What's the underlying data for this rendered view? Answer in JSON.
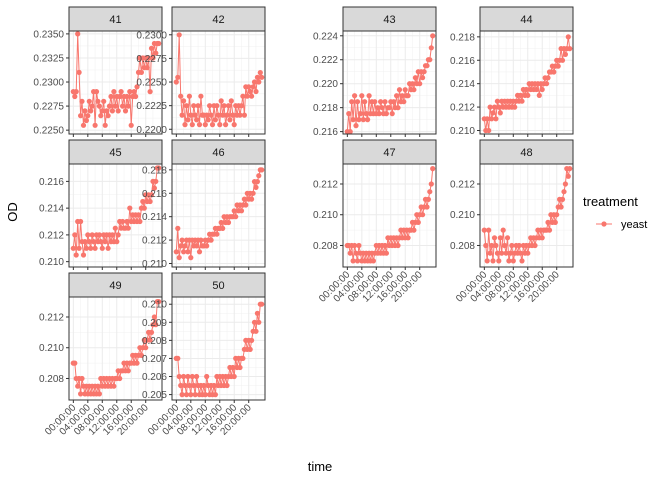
{
  "chart_data": {
    "type": "line",
    "facet_variable": "well",
    "xlabel": "time",
    "ylabel": "OD",
    "x_tick_labels": [
      "00:00:00",
      "04:00:00",
      "08:00:00",
      "12:00:00",
      "16:00:00",
      "20:00:00"
    ],
    "x_tick_hours": [
      0,
      4,
      8,
      12,
      16,
      20
    ],
    "xlim_hours": [
      -1.2,
      24.5
    ],
    "legend": {
      "title": "treatment",
      "entries": [
        "yeast"
      ],
      "position": "right"
    },
    "series_color": "#F8766D",
    "grid": true,
    "panels": [
      {
        "label": "41",
        "ylim": [
          0.2246,
          0.2353
        ],
        "y_ticks": [
          0.225,
          0.2275,
          0.23,
          0.2325,
          0.235
        ],
        "y_tick_labels": [
          "0.2250",
          "0.2275",
          "0.2300",
          "0.2325",
          "0.2350"
        ],
        "values": [
          0.229,
          0.2285,
          0.229,
          0.235,
          0.231,
          0.2265,
          0.228,
          0.2255,
          0.227,
          0.226,
          0.2265,
          0.228,
          0.227,
          0.2275,
          0.229,
          0.2255,
          0.229,
          0.228,
          0.2275,
          0.2265,
          0.227,
          0.228,
          0.2255,
          0.227,
          0.2265,
          0.2275,
          0.2285,
          0.227,
          0.229,
          0.2275,
          0.2285,
          0.227,
          0.2285,
          0.229,
          0.2275,
          0.2285,
          0.227,
          0.2285,
          0.2275,
          0.229,
          0.2255,
          0.2285,
          0.229,
          0.2285,
          0.2295,
          0.231,
          0.2325,
          0.231,
          0.2325,
          0.2315,
          0.2325,
          0.2315,
          0.2325,
          0.229,
          0.2335,
          0.2325,
          0.234,
          0.233,
          0.234,
          0.234
        ]
      },
      {
        "label": "42",
        "ylim": [
          0.2195,
          0.2304
        ],
        "y_ticks": [
          0.22,
          0.2225,
          0.225,
          0.2275,
          0.23
        ],
        "y_tick_labels": [
          "0.2200",
          "0.2225",
          "0.2250",
          "0.2275",
          "0.2300"
        ],
        "values": [
          0.225,
          0.2255,
          0.23,
          0.2235,
          0.2215,
          0.223,
          0.2205,
          0.2225,
          0.221,
          0.2235,
          0.2215,
          0.2205,
          0.2225,
          0.2215,
          0.221,
          0.2225,
          0.2205,
          0.2235,
          0.2215,
          0.2215,
          0.2205,
          0.2215,
          0.221,
          0.2225,
          0.2215,
          0.2205,
          0.2225,
          0.221,
          0.2225,
          0.2215,
          0.2205,
          0.223,
          0.2215,
          0.2225,
          0.2205,
          0.2215,
          0.2225,
          0.221,
          0.223,
          0.2215,
          0.2205,
          0.2225,
          0.2215,
          0.2225,
          0.2215,
          0.2225,
          0.2235,
          0.2215,
          0.2245,
          0.2235,
          0.2245,
          0.224,
          0.2235,
          0.2245,
          0.225,
          0.224,
          0.2255,
          0.225,
          0.226,
          0.2255
        ]
      },
      {
        "label": "43",
        "ylim": [
          0.2158,
          0.2244
        ],
        "y_ticks": [
          0.216,
          0.218,
          0.22,
          0.222,
          0.224
        ],
        "y_tick_labels": [
          "0.216",
          "0.218",
          "0.220",
          "0.222",
          "0.224"
        ],
        "values": [
          0.216,
          0.2175,
          0.216,
          0.2185,
          0.217,
          0.219,
          0.2165,
          0.2185,
          0.217,
          0.2175,
          0.219,
          0.217,
          0.2185,
          0.2175,
          0.217,
          0.219,
          0.2175,
          0.2185,
          0.2175,
          0.2185,
          0.2175,
          0.218,
          0.2175,
          0.2185,
          0.218,
          0.2175,
          0.2185,
          0.2175,
          0.218,
          0.218,
          0.2185,
          0.2175,
          0.2185,
          0.218,
          0.219,
          0.218,
          0.2195,
          0.2185,
          0.219,
          0.2185,
          0.2195,
          0.219,
          0.219,
          0.22,
          0.2195,
          0.22,
          0.2195,
          0.2205,
          0.22,
          0.221,
          0.22,
          0.221,
          0.2205,
          0.221,
          0.2215,
          0.2215,
          0.222,
          0.222,
          0.223,
          0.224
        ]
      },
      {
        "label": "44",
        "ylim": [
          0.2097,
          0.2185
        ],
        "y_ticks": [
          0.21,
          0.212,
          0.214,
          0.216,
          0.218
        ],
        "y_tick_labels": [
          "0.210",
          "0.212",
          "0.214",
          "0.216",
          "0.218"
        ],
        "values": [
          0.211,
          0.21,
          0.211,
          0.21,
          0.212,
          0.211,
          0.2115,
          0.212,
          0.211,
          0.2125,
          0.212,
          0.2115,
          0.2125,
          0.212,
          0.2125,
          0.212,
          0.2125,
          0.212,
          0.2125,
          0.212,
          0.2125,
          0.212,
          0.2125,
          0.213,
          0.2125,
          0.213,
          0.2125,
          0.2135,
          0.213,
          0.2135,
          0.213,
          0.214,
          0.2135,
          0.214,
          0.2135,
          0.214,
          0.2135,
          0.214,
          0.213,
          0.214,
          0.2135,
          0.214,
          0.2145,
          0.214,
          0.2145,
          0.215,
          0.215,
          0.2155,
          0.215,
          0.2155,
          0.216,
          0.2155,
          0.216,
          0.217,
          0.216,
          0.217,
          0.2165,
          0.217,
          0.218,
          0.217
        ]
      },
      {
        "label": "45",
        "ylim": [
          0.2096,
          0.2173
        ],
        "y_ticks": [
          0.21,
          0.212,
          0.214,
          0.216
        ],
        "y_tick_labels": [
          "0.210",
          "0.212",
          "0.214",
          "0.216"
        ],
        "values": [
          0.211,
          0.212,
          0.2105,
          0.213,
          0.211,
          0.213,
          0.2115,
          0.2105,
          0.2115,
          0.211,
          0.212,
          0.2115,
          0.211,
          0.212,
          0.2115,
          0.211,
          0.212,
          0.2115,
          0.212,
          0.2115,
          0.211,
          0.212,
          0.2115,
          0.212,
          0.211,
          0.212,
          0.2115,
          0.212,
          0.2115,
          0.2125,
          0.2115,
          0.212,
          0.213,
          0.2125,
          0.213,
          0.2125,
          0.2125,
          0.213,
          0.2125,
          0.214,
          0.213,
          0.2135,
          0.213,
          0.2135,
          0.213,
          0.2135,
          0.213,
          0.214,
          0.2145,
          0.214,
          0.215,
          0.2145,
          0.215,
          0.2145,
          0.215,
          0.216,
          0.2155,
          0.216,
          0.217,
          0.217
        ]
      },
      {
        "label": "46",
        "ylim": [
          0.2097,
          0.2185
        ],
        "y_ticks": [
          0.21,
          0.212,
          0.214,
          0.216,
          0.218
        ],
        "y_tick_labels": [
          "0.210",
          "0.212",
          "0.214",
          "0.216",
          "0.218"
        ],
        "values": [
          0.211,
          0.213,
          0.2105,
          0.2115,
          0.212,
          0.211,
          0.2115,
          0.212,
          0.211,
          0.212,
          0.2105,
          0.212,
          0.2115,
          0.212,
          0.2115,
          0.212,
          0.211,
          0.212,
          0.2115,
          0.2115,
          0.212,
          0.2115,
          0.212,
          0.2125,
          0.212,
          0.2125,
          0.2125,
          0.213,
          0.2125,
          0.213,
          0.213,
          0.2135,
          0.213,
          0.214,
          0.2135,
          0.214,
          0.2135,
          0.214,
          0.214,
          0.214,
          0.2145,
          0.214,
          0.215,
          0.2145,
          0.215,
          0.2145,
          0.215,
          0.2155,
          0.215,
          0.216,
          0.2155,
          0.216,
          0.2155,
          0.216,
          0.217,
          0.2165,
          0.217,
          0.2175,
          0.218,
          0.218
        ]
      },
      {
        "label": "47",
        "ylim": [
          0.2066,
          0.2133
        ],
        "y_ticks": [
          0.208,
          0.21,
          0.212
        ],
        "y_tick_labels": [
          "0.208",
          "0.210",
          "0.212"
        ],
        "values": [
          0.208,
          0.208,
          0.2075,
          0.208,
          0.207,
          0.208,
          0.2075,
          0.207,
          0.208,
          0.2075,
          0.207,
          0.2075,
          0.207,
          0.2075,
          0.207,
          0.2075,
          0.207,
          0.2075,
          0.207,
          0.2075,
          0.208,
          0.2075,
          0.208,
          0.2075,
          0.208,
          0.2075,
          0.208,
          0.2075,
          0.2085,
          0.208,
          0.2085,
          0.208,
          0.2085,
          0.208,
          0.2085,
          0.208,
          0.2085,
          0.209,
          0.2085,
          0.209,
          0.2085,
          0.209,
          0.2085,
          0.209,
          0.209,
          0.2095,
          0.209,
          0.2095,
          0.21,
          0.2095,
          0.21,
          0.2105,
          0.21,
          0.2105,
          0.211,
          0.2105,
          0.211,
          0.2115,
          0.212,
          0.213
        ]
      },
      {
        "label": "48",
        "ylim": [
          0.2066,
          0.2133
        ],
        "y_ticks": [
          0.208,
          0.21,
          0.212
        ],
        "y_tick_labels": [
          "0.208",
          "0.210",
          "0.212"
        ],
        "values": [
          0.209,
          0.208,
          0.207,
          0.209,
          0.2075,
          0.208,
          0.207,
          0.2085,
          0.208,
          0.2075,
          0.207,
          0.2085,
          0.2075,
          0.209,
          0.208,
          0.2075,
          0.2085,
          0.207,
          0.2075,
          0.208,
          0.207,
          0.2075,
          0.208,
          0.2075,
          0.208,
          0.2075,
          0.207,
          0.208,
          0.2075,
          0.208,
          0.2075,
          0.208,
          0.2085,
          0.208,
          0.2085,
          0.208,
          0.2085,
          0.209,
          0.2085,
          0.209,
          0.2085,
          0.209,
          0.209,
          0.209,
          0.2095,
          0.209,
          0.21,
          0.2095,
          0.21,
          0.2095,
          0.21,
          0.2105,
          0.211,
          0.2105,
          0.211,
          0.2115,
          0.212,
          0.213,
          0.2125,
          0.213
        ]
      },
      {
        "label": "49",
        "ylim": [
          0.2066,
          0.2133
        ],
        "y_ticks": [
          0.208,
          0.21,
          0.212
        ],
        "y_tick_labels": [
          "0.208",
          "0.210",
          "0.212"
        ],
        "values": [
          0.209,
          0.209,
          0.208,
          0.2075,
          0.208,
          0.207,
          0.208,
          0.2075,
          0.207,
          0.2075,
          0.207,
          0.2075,
          0.207,
          0.2075,
          0.207,
          0.2075,
          0.207,
          0.2075,
          0.207,
          0.208,
          0.2075,
          0.208,
          0.2075,
          0.208,
          0.2075,
          0.208,
          0.2075,
          0.208,
          0.2075,
          0.208,
          0.208,
          0.2085,
          0.208,
          0.2085,
          0.2085,
          0.209,
          0.2085,
          0.209,
          0.2085,
          0.209,
          0.209,
          0.2095,
          0.209,
          0.2095,
          0.209,
          0.2095,
          0.21,
          0.2095,
          0.21,
          0.2105,
          0.21,
          0.2105,
          0.211,
          0.2105,
          0.211,
          0.2115,
          0.212,
          0.2115,
          0.213,
          0.213
        ]
      },
      {
        "label": "50",
        "ylim": [
          0.2047,
          0.2104
        ],
        "y_ticks": [
          0.205,
          0.206,
          0.207,
          0.208,
          0.209,
          0.21
        ],
        "y_tick_labels": [
          "0.205",
          "0.206",
          "0.207",
          "0.208",
          "0.209",
          "0.210"
        ],
        "values": [
          0.207,
          0.207,
          0.206,
          0.2055,
          0.205,
          0.206,
          0.2055,
          0.205,
          0.206,
          0.2055,
          0.205,
          0.206,
          0.2055,
          0.205,
          0.206,
          0.2055,
          0.205,
          0.2055,
          0.205,
          0.2055,
          0.205,
          0.206,
          0.2055,
          0.205,
          0.2055,
          0.205,
          0.2055,
          0.205,
          0.206,
          0.2055,
          0.206,
          0.2055,
          0.206,
          0.2055,
          0.206,
          0.2055,
          0.206,
          0.2065,
          0.206,
          0.2065,
          0.206,
          0.207,
          0.2065,
          0.207,
          0.2065,
          0.207,
          0.207,
          0.2075,
          0.208,
          0.2075,
          0.208,
          0.2075,
          0.208,
          0.2085,
          0.209,
          0.2085,
          0.2095,
          0.209,
          0.21,
          0.21
        ]
      }
    ]
  }
}
